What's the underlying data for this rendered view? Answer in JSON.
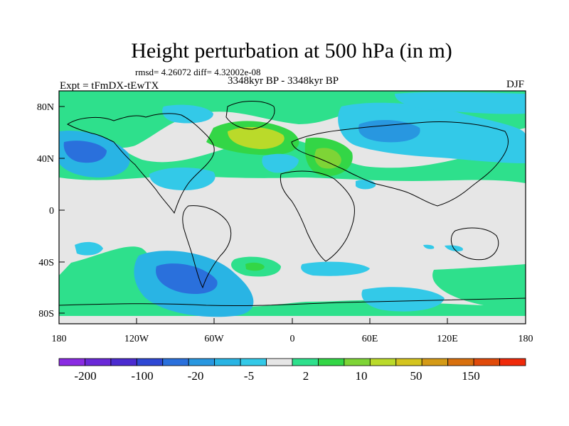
{
  "title": "Height perturbation at 500 hPa (in m)",
  "stats": "rmsd= 4.26072 diff= 4.32002e-08",
  "period": "3348kyr BP - 3348kyr BP",
  "experiment": "Expt = tFmDX-tEwTX",
  "season": "DJF",
  "map": {
    "x_ticks": [
      "180",
      "120W",
      "60W",
      "0",
      "60E",
      "120E",
      "180"
    ],
    "y_ticks": [
      "80N",
      "40N",
      "0",
      "40S",
      "80S"
    ]
  },
  "colorbar": {
    "colors": [
      "#8a2be2",
      "#6a28d8",
      "#4b2bd0",
      "#2e48d4",
      "#2a70dc",
      "#2897e0",
      "#29b4e4",
      "#33c9e8",
      "#e6e6e6",
      "#2ee08c",
      "#33d646",
      "#7ed436",
      "#bada2a",
      "#d4c41e",
      "#d49a16",
      "#d8700e",
      "#e04a0a",
      "#f02a0a"
    ],
    "labels": [
      "-200",
      "-100",
      "-20",
      "-5",
      "2",
      "10",
      "50",
      "150"
    ]
  },
  "legend_colors": {
    "land_bg": "#e6e6e6",
    "coast": "#000000"
  }
}
